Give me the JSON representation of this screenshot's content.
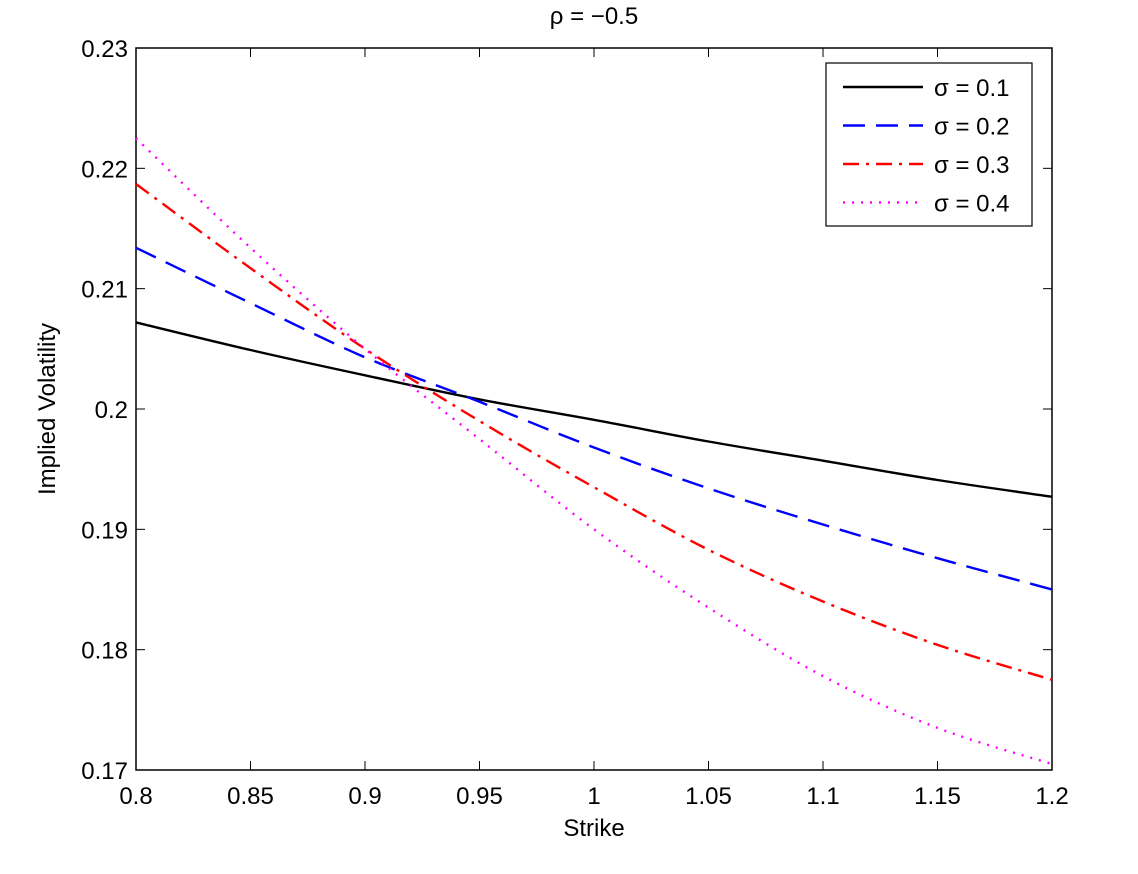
{
  "chart_data": {
    "type": "line",
    "title": "ρ = −0.5",
    "xlabel": "Strike",
    "ylabel": "Implied Volatility",
    "xlim": [
      0.8,
      1.2
    ],
    "ylim": [
      0.17,
      0.23
    ],
    "grid": false,
    "legend_position": "top-right",
    "x_ticks": [
      0.8,
      0.85,
      0.9,
      0.95,
      1.0,
      1.05,
      1.1,
      1.15,
      1.2
    ],
    "x_tick_labels": [
      "0.8",
      "0.85",
      "0.9",
      "0.95",
      "1",
      "1.05",
      "1.1",
      "1.15",
      "1.2"
    ],
    "y_ticks": [
      0.17,
      0.18,
      0.19,
      0.2,
      0.21,
      0.22,
      0.23
    ],
    "y_tick_labels": [
      "0.17",
      "0.18",
      "0.19",
      "0.2",
      "0.21",
      "0.22",
      "0.23"
    ],
    "x": [
      0.8,
      0.85,
      0.9,
      0.95,
      1.0,
      1.05,
      1.1,
      1.15,
      1.2
    ],
    "series": [
      {
        "name": "σ = 0.1",
        "color": "#000000",
        "dash": "solid",
        "values": [
          0.2072,
          0.2049,
          0.2028,
          0.2008,
          0.1991,
          0.1973,
          0.1957,
          0.1941,
          0.1927
        ]
      },
      {
        "name": "σ = 0.2",
        "color": "#0000ff",
        "dash": "dashed",
        "values": [
          0.2134,
          0.2088,
          0.2043,
          0.2006,
          0.1968,
          0.1934,
          0.1904,
          0.1876,
          0.185
        ]
      },
      {
        "name": "σ = 0.3",
        "color": "#ff0000",
        "dash": "dashdot",
        "values": [
          0.2187,
          0.2117,
          0.205,
          0.199,
          0.1935,
          0.1883,
          0.184,
          0.1804,
          0.1775
        ]
      },
      {
        "name": "σ = 0.4",
        "color": "#ff00ff",
        "dash": "dotted",
        "values": [
          0.2225,
          0.2134,
          0.205,
          0.1975,
          0.19,
          0.1835,
          0.1778,
          0.1735,
          0.1705
        ]
      }
    ]
  }
}
